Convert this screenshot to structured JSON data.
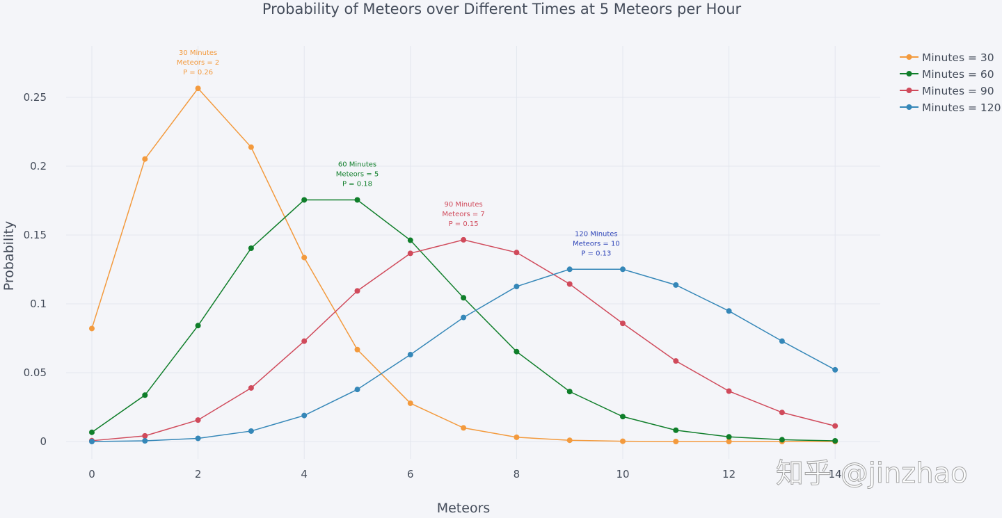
{
  "chart_data": {
    "type": "line",
    "title": "Probability of Meteors over Different Times at 5 Meteors per Hour",
    "xlabel": "Meteors",
    "ylabel": "Probability",
    "xlim": [
      -0.5,
      14.5
    ],
    "ylim": [
      -0.015,
      0.28
    ],
    "x_ticks": [
      "0",
      "2",
      "4",
      "6",
      "8",
      "10",
      "12",
      "14"
    ],
    "x_tick_values": [
      0,
      2,
      4,
      6,
      8,
      10,
      12,
      14
    ],
    "y_ticks": [
      "0",
      "0.05",
      "0.1",
      "0.15",
      "0.2",
      "0.25"
    ],
    "y_tick_values": [
      0,
      0.05,
      0.1,
      0.15,
      0.2,
      0.25
    ],
    "grid": true,
    "legend_position": "top-right",
    "x": [
      0,
      1,
      2,
      3,
      4,
      5,
      6,
      7,
      8,
      9,
      10,
      11,
      12,
      13,
      14
    ],
    "series": [
      {
        "name": "Minutes = 30",
        "color": "#f39a3d",
        "values": [
          0.0821,
          0.2052,
          0.2565,
          0.2138,
          0.1336,
          0.0668,
          0.0278,
          0.0099,
          0.0031,
          0.0009,
          0.0002,
          0.0,
          0.0,
          0.0,
          0.0
        ],
        "annotation": {
          "x": 2,
          "y": 0.2565,
          "lines": [
            "30 Minutes",
            "Meteors = 2",
            "P = 0.26"
          ]
        }
      },
      {
        "name": "Minutes = 60",
        "color": "#0f7e2a",
        "values": [
          0.0067,
          0.0337,
          0.0842,
          0.1404,
          0.1755,
          0.1755,
          0.1462,
          0.1044,
          0.0653,
          0.0363,
          0.0181,
          0.0082,
          0.0034,
          0.0013,
          0.0005
        ],
        "annotation": {
          "x": 5,
          "y": 0.1755,
          "lines": [
            "60 Minutes",
            "Meteors = 5",
            "P = 0.18"
          ]
        }
      },
      {
        "name": "Minutes = 90",
        "color": "#d04a5b",
        "values": [
          0.0006,
          0.0041,
          0.0156,
          0.0389,
          0.0729,
          0.1094,
          0.1367,
          0.1465,
          0.1373,
          0.1144,
          0.0858,
          0.0585,
          0.0366,
          0.0211,
          0.0113
        ],
        "annotation": {
          "x": 7,
          "y": 0.1465,
          "lines": [
            "90 Minutes",
            "Meteors = 7",
            "P = 0.15"
          ]
        }
      },
      {
        "name": "Minutes = 120",
        "color": "#3587b8",
        "values": [
          0.0,
          0.0005,
          0.0023,
          0.0076,
          0.0189,
          0.0378,
          0.0631,
          0.0901,
          0.1126,
          0.1251,
          0.1251,
          0.1137,
          0.0948,
          0.0729,
          0.0521
        ],
        "annotation": {
          "x": 9.5,
          "y": 0.1251,
          "lines": [
            "120 Minutes",
            "Meteors = 10",
            "P = 0.13"
          ],
          "color": "#2f45b8"
        }
      }
    ]
  },
  "watermark": "知乎 @jinzhao"
}
